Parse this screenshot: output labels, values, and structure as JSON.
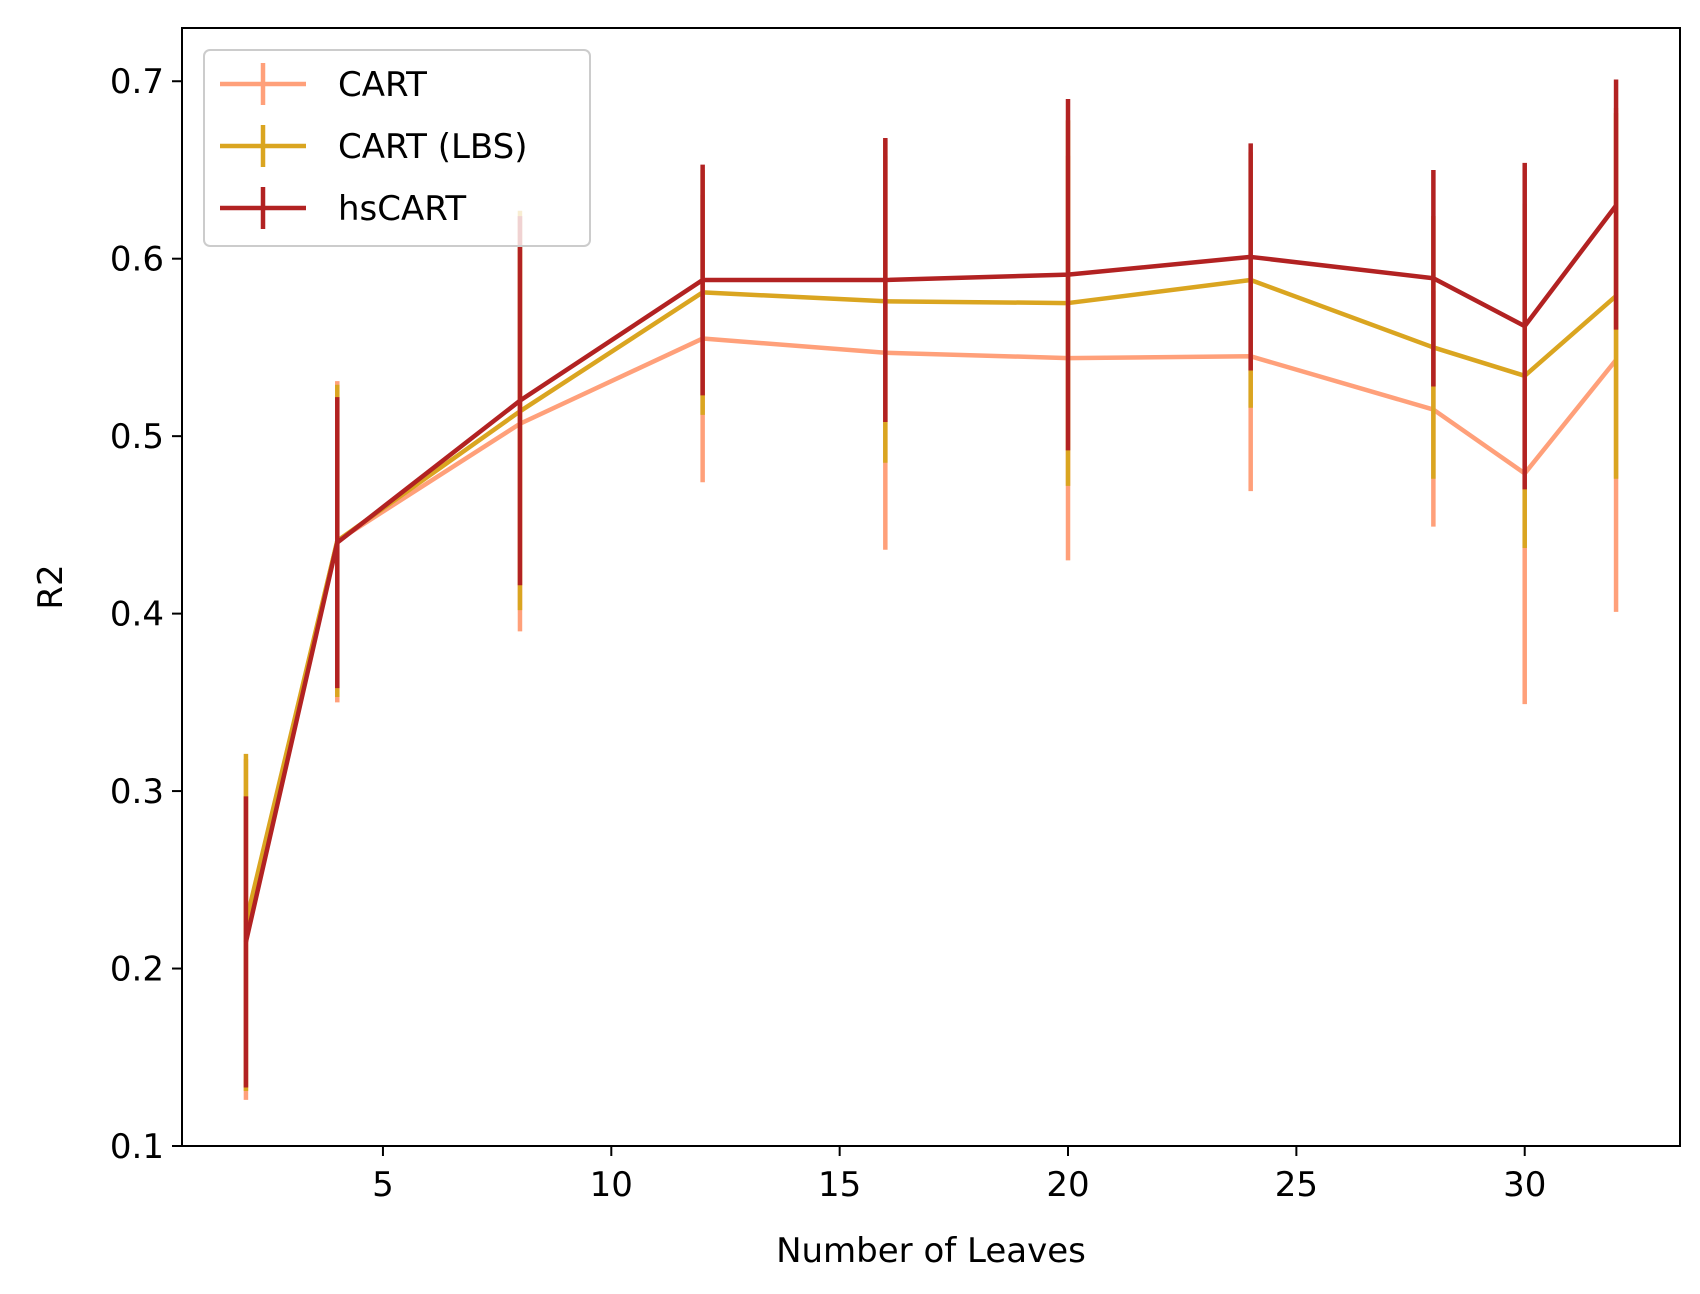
{
  "chart_data": {
    "type": "line",
    "title": "",
    "xlabel": "Number of Leaves",
    "ylabel": "R2",
    "xlim": [
      0.6,
      33.4
    ],
    "ylim": [
      0.1,
      0.73
    ],
    "xticks": [
      5,
      10,
      15,
      20,
      25,
      30
    ],
    "yticks": [
      0.1,
      0.2,
      0.3,
      0.4,
      0.5,
      0.6,
      0.7
    ],
    "x": [
      2,
      4,
      8,
      12,
      16,
      20,
      24,
      28,
      30,
      32
    ],
    "grid": false,
    "legend_position": "upper-left",
    "series": [
      {
        "name": "CART",
        "color": "#FFA07A",
        "values": [
          0.222,
          0.441,
          0.507,
          0.555,
          0.547,
          0.544,
          0.545,
          0.515,
          0.479,
          0.543
        ],
        "err_low": [
          0.126,
          0.35,
          0.39,
          0.474,
          0.436,
          0.43,
          0.469,
          0.449,
          0.349,
          0.401
        ],
        "err_high": [
          0.318,
          0.531,
          0.624,
          0.636,
          0.658,
          0.658,
          0.622,
          0.582,
          0.609,
          0.685
        ]
      },
      {
        "name": "CART (LBS)",
        "color": "#DAA520",
        "values": [
          0.226,
          0.441,
          0.514,
          0.581,
          0.576,
          0.575,
          0.588,
          0.55,
          0.534,
          0.579
        ],
        "err_low": [
          0.131,
          0.353,
          0.402,
          0.512,
          0.485,
          0.472,
          0.516,
          0.476,
          0.437,
          0.476
        ],
        "err_high": [
          0.321,
          0.529,
          0.627,
          0.65,
          0.667,
          0.678,
          0.66,
          0.624,
          0.631,
          0.682
        ]
      },
      {
        "name": "hsCART",
        "color": "#B22222",
        "values": [
          0.215,
          0.44,
          0.52,
          0.588,
          0.588,
          0.591,
          0.601,
          0.589,
          0.562,
          0.63
        ],
        "err_low": [
          0.133,
          0.358,
          0.416,
          0.523,
          0.508,
          0.492,
          0.537,
          0.528,
          0.47,
          0.56
        ],
        "err_high": [
          0.297,
          0.522,
          0.624,
          0.653,
          0.668,
          0.69,
          0.665,
          0.65,
          0.654,
          0.701
        ]
      }
    ]
  }
}
